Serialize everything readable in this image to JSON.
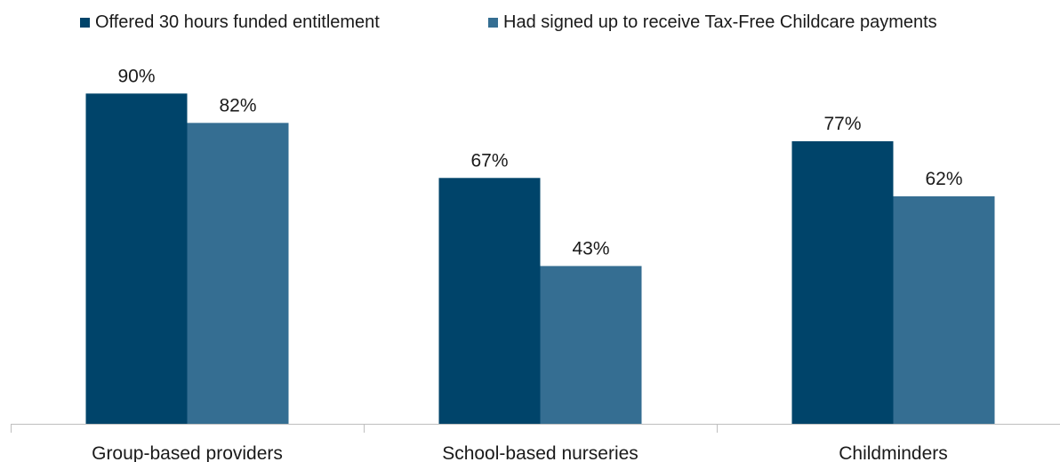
{
  "chart_data": {
    "type": "bar",
    "categories": [
      "Group-based providers",
      "School-based nurseries",
      "Childminders"
    ],
    "series": [
      {
        "name": "Offered 30 hours funded entitlement",
        "values": [
          90,
          67,
          77
        ],
        "labels": [
          "90%",
          "67%",
          "77%"
        ],
        "color": "#00446a"
      },
      {
        "name": "Had signed up to receive Tax-Free Childcare payments",
        "values": [
          82,
          43,
          62
        ],
        "labels": [
          "82%",
          "43%",
          "62%"
        ],
        "color": "#356e92"
      }
    ],
    "title": "",
    "xlabel": "",
    "ylabel": "",
    "ylim": [
      0,
      100
    ],
    "grid": false,
    "legend_position": "top"
  }
}
